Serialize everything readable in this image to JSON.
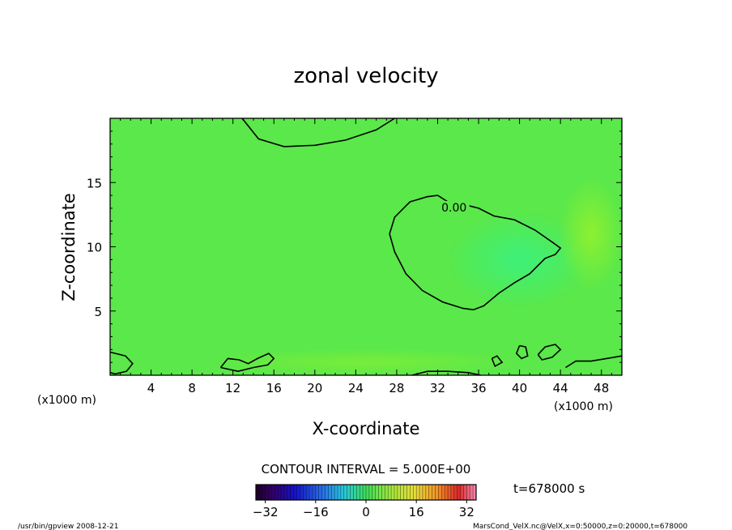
{
  "chart_data": {
    "type": "heatmap",
    "title": "zonal velocity",
    "xlabel": "X-coordinate",
    "ylabel": "Z-coordinate",
    "x_unit": "(x1000 m)",
    "y_unit": "(x1000 m)",
    "xlim": [
      0,
      50
    ],
    "ylim": [
      0,
      20
    ],
    "x_ticks": [
      4,
      8,
      12,
      16,
      20,
      24,
      28,
      32,
      36,
      40,
      44,
      48
    ],
    "y_ticks": [
      5,
      10,
      15
    ],
    "contour_interval_text": "CONTOUR INTERVAL = 5.000E+00",
    "contour_label": "0.00",
    "time_label": "t=678000 s",
    "colorbar": {
      "min": -35,
      "max": 35,
      "ticks": [
        -32,
        -16,
        0,
        16,
        32
      ]
    },
    "zero_contours": [
      {
        "name": "upper",
        "points": [
          [
            12.9,
            20
          ],
          [
            14.5,
            18.4
          ],
          [
            17.0,
            17.8
          ],
          [
            20.0,
            17.9
          ],
          [
            23.0,
            18.3
          ],
          [
            26.0,
            19.1
          ],
          [
            27.8,
            20
          ]
        ]
      },
      {
        "name": "right",
        "points": [
          [
            31.0,
            13.9
          ],
          [
            32.0,
            14.0
          ],
          [
            33.0,
            13.5
          ],
          [
            34.5,
            13.3
          ],
          [
            36.0,
            13.0
          ],
          [
            37.5,
            12.4
          ],
          [
            39.5,
            12.1
          ],
          [
            41.5,
            11.3
          ],
          [
            43.3,
            10.3
          ],
          [
            44.0,
            9.9
          ],
          [
            43.5,
            9.4
          ],
          [
            42.5,
            9.1
          ],
          [
            41.0,
            7.9
          ],
          [
            39.5,
            7.2
          ],
          [
            38.0,
            6.4
          ],
          [
            36.5,
            5.4
          ],
          [
            35.5,
            5.1
          ],
          [
            34.5,
            5.2
          ],
          [
            32.5,
            5.7
          ],
          [
            30.5,
            6.6
          ],
          [
            28.9,
            7.9
          ],
          [
            27.8,
            9.6
          ],
          [
            27.3,
            11.0
          ],
          [
            27.8,
            12.3
          ],
          [
            29.3,
            13.5
          ],
          [
            31.0,
            13.9
          ]
        ]
      },
      {
        "name": "bottom-left",
        "points": [
          [
            0,
            1.8
          ],
          [
            1.5,
            1.5
          ],
          [
            2.2,
            0.9
          ],
          [
            1.6,
            0.3
          ],
          [
            0.5,
            0.1
          ],
          [
            0,
            0.2
          ]
        ]
      },
      {
        "name": "bottom-left-2",
        "points": [
          [
            10.8,
            0.6
          ],
          [
            11.5,
            1.3
          ],
          [
            12.6,
            1.2
          ],
          [
            13.5,
            0.9
          ],
          [
            14.4,
            1.3
          ],
          [
            15.5,
            1.7
          ],
          [
            16.0,
            1.3
          ],
          [
            15.4,
            0.8
          ],
          [
            14.0,
            0.6
          ],
          [
            12.5,
            0.3
          ],
          [
            10.8,
            0.6
          ]
        ]
      },
      {
        "name": "bottom-mid",
        "points": [
          [
            29.5,
            0
          ],
          [
            31.0,
            0.3
          ],
          [
            33.0,
            0.3
          ],
          [
            35.0,
            0.2
          ],
          [
            36.2,
            0
          ]
        ]
      },
      {
        "name": "bottom-right",
        "points": [
          [
            44.5,
            0.6
          ],
          [
            45.5,
            1.1
          ],
          [
            47.0,
            1.1
          ],
          [
            48.5,
            1.3
          ],
          [
            50,
            1.5
          ]
        ]
      },
      {
        "name": "island-1",
        "points": [
          [
            40.0,
            2.3
          ],
          [
            40.6,
            2.2
          ],
          [
            40.8,
            1.5
          ],
          [
            40.2,
            1.3
          ],
          [
            39.7,
            1.7
          ],
          [
            40.0,
            2.3
          ]
        ]
      },
      {
        "name": "island-2",
        "points": [
          [
            41.8,
            1.6
          ],
          [
            42.5,
            2.2
          ],
          [
            43.5,
            2.4
          ],
          [
            44.0,
            2.0
          ],
          [
            43.2,
            1.4
          ],
          [
            42.2,
            1.2
          ],
          [
            41.8,
            1.6
          ]
        ]
      },
      {
        "name": "island-3",
        "points": [
          [
            37.3,
            1.3
          ],
          [
            37.8,
            1.5
          ],
          [
            38.3,
            1.0
          ],
          [
            37.6,
            0.7
          ],
          [
            37.3,
            1.3
          ]
        ]
      }
    ]
  },
  "footer": {
    "left": "/usr/bin/gpview  2008-12-21",
    "right": "MarsCond_VelX.nc@VelX,x=0:50000,z=0:20000,t=678000"
  }
}
